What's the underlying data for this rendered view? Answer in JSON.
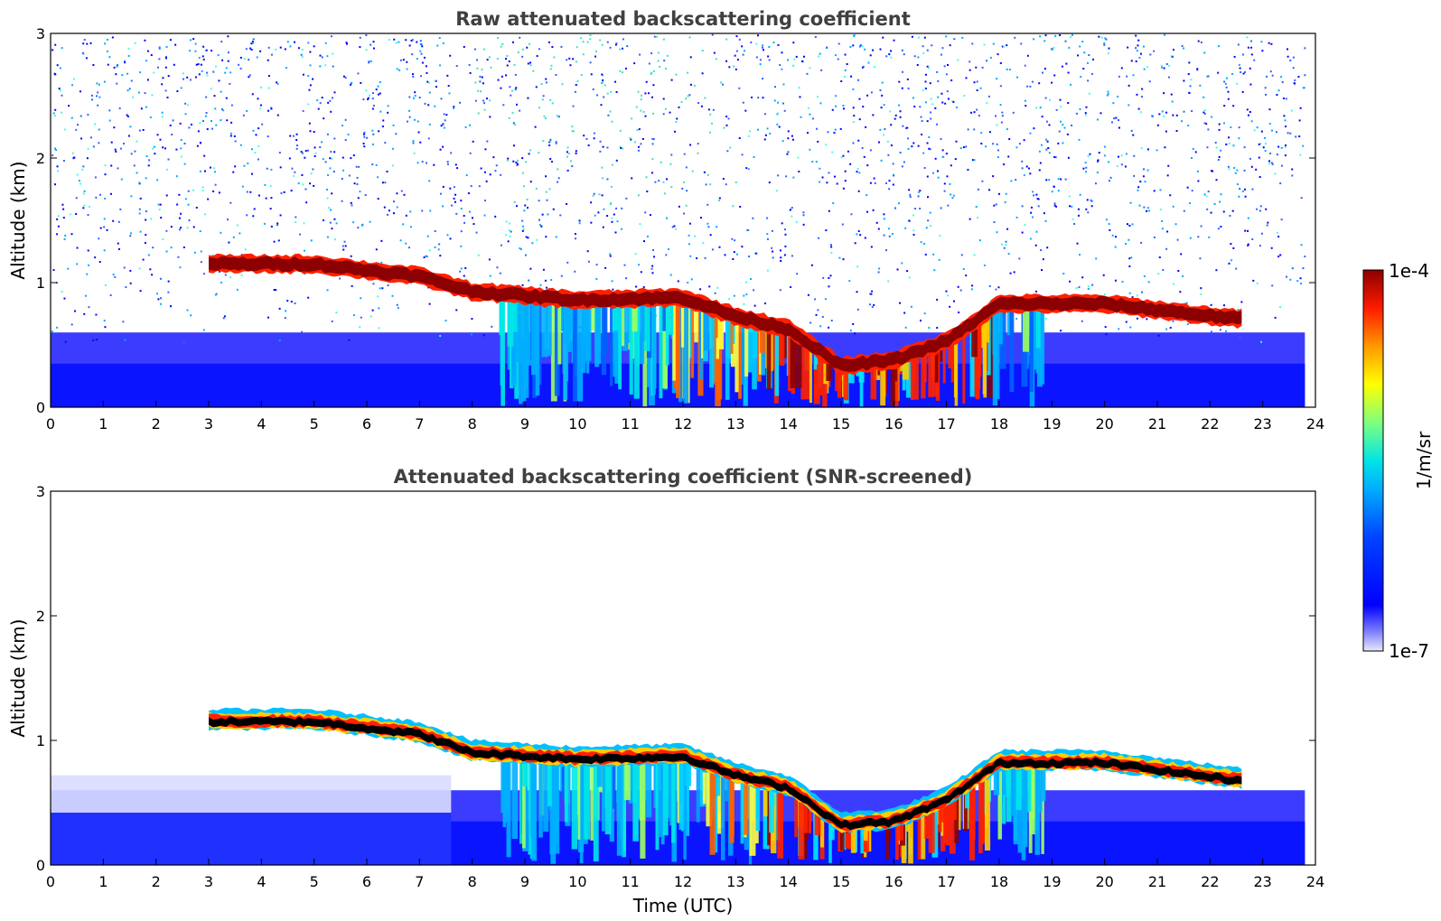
{
  "chart_data": [
    {
      "type": "heatmap",
      "title": "Raw attenuated backscattering coefficient",
      "xlabel": "",
      "ylabel": "Altitude (km)",
      "xlim": [
        0,
        24
      ],
      "ylim": [
        0,
        3
      ],
      "x_ticks": [
        "0",
        "1",
        "2",
        "3",
        "4",
        "5",
        "6",
        "7",
        "8",
        "9",
        "10",
        "11",
        "12",
        "13",
        "14",
        "15",
        "16",
        "17",
        "18",
        "19",
        "20",
        "21",
        "22",
        "23",
        "24"
      ],
      "y_ticks": [
        "0",
        "1",
        "2",
        "3"
      ],
      "layer_top_km": [
        {
          "t": 3.0,
          "top": 1.22
        },
        {
          "t": 5.0,
          "top": 1.22
        },
        {
          "t": 7.0,
          "top": 1.12
        },
        {
          "t": 8.0,
          "top": 1.0
        },
        {
          "t": 10.0,
          "top": 0.93
        },
        {
          "t": 12.0,
          "top": 0.95
        },
        {
          "t": 13.0,
          "top": 0.8
        },
        {
          "t": 14.0,
          "top": 0.7
        },
        {
          "t": 15.0,
          "top": 0.4
        },
        {
          "t": 16.0,
          "top": 0.45
        },
        {
          "t": 17.0,
          "top": 0.6
        },
        {
          "t": 18.0,
          "top": 0.9
        },
        {
          "t": 20.0,
          "top": 0.9
        },
        {
          "t": 22.5,
          "top": 0.78
        }
      ],
      "noise": "high"
    },
    {
      "type": "heatmap",
      "title": "Attenuated backscattering coefficient (SNR-screened)",
      "xlabel": "Time (UTC)",
      "ylabel": "Altitude (km)",
      "xlim": [
        0,
        24
      ],
      "ylim": [
        0,
        3
      ],
      "x_ticks": [
        "0",
        "1",
        "2",
        "3",
        "4",
        "5",
        "6",
        "7",
        "8",
        "9",
        "10",
        "11",
        "12",
        "13",
        "14",
        "15",
        "16",
        "17",
        "18",
        "19",
        "20",
        "21",
        "22",
        "23",
        "24"
      ],
      "y_ticks": [
        "0",
        "1",
        "2",
        "3"
      ],
      "layer_top_km": [
        {
          "t": 3.0,
          "top": 1.25
        },
        {
          "t": 5.0,
          "top": 1.25
        },
        {
          "t": 7.0,
          "top": 1.15
        },
        {
          "t": 8.0,
          "top": 1.0
        },
        {
          "t": 10.0,
          "top": 0.95
        },
        {
          "t": 12.0,
          "top": 0.97
        },
        {
          "t": 13.0,
          "top": 0.82
        },
        {
          "t": 14.0,
          "top": 0.72
        },
        {
          "t": 15.0,
          "top": 0.42
        },
        {
          "t": 16.0,
          "top": 0.45
        },
        {
          "t": 17.0,
          "top": 0.62
        },
        {
          "t": 18.0,
          "top": 0.92
        },
        {
          "t": 20.0,
          "top": 0.92
        },
        {
          "t": 22.5,
          "top": 0.78
        }
      ],
      "noise": "screened"
    }
  ],
  "colorbar": {
    "label": "1/m/sr",
    "max_label": "1e-4",
    "min_label": "1e-7",
    "scale": "log",
    "colors": [
      "#e8e8f8",
      "#0000ff",
      "#00aaff",
      "#00ffff",
      "#ffff00",
      "#ff8800",
      "#ff0000",
      "#8b0000"
    ]
  }
}
